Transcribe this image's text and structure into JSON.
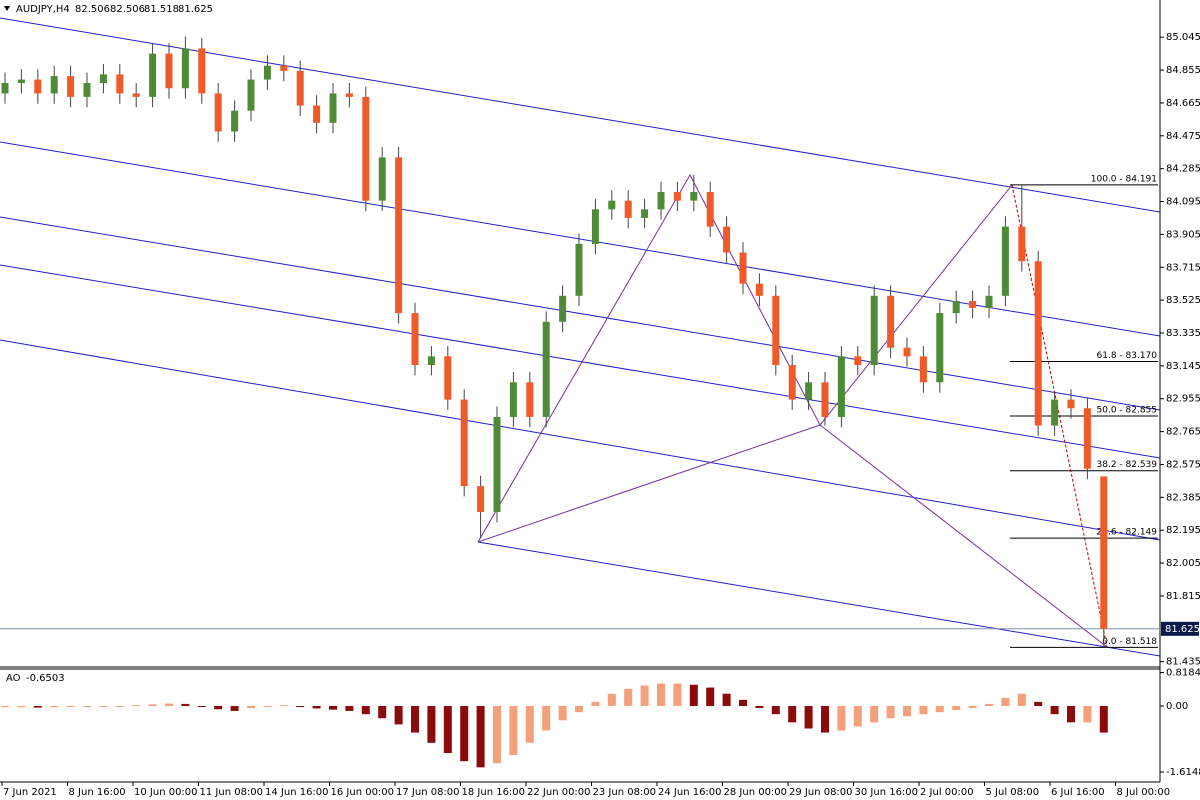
{
  "chart_data": {
    "type": "candlestick",
    "symbol": "AUDJPY,H4",
    "ohlc": [
      82.506,
      82.506,
      81.518,
      81.625
    ],
    "open": [
      84.72,
      84.78,
      84.8,
      84.72,
      84.82,
      84.7,
      84.78,
      84.83,
      84.72,
      84.7,
      84.95,
      84.75,
      84.98,
      84.72,
      84.5,
      84.62,
      84.8,
      84.88,
      84.85,
      84.65,
      84.55,
      84.72,
      84.7,
      84.1,
      84.35,
      83.45,
      83.15,
      83.2,
      82.95,
      82.45,
      82.3,
      82.85,
      83.05,
      82.85,
      83.4,
      83.55,
      83.85,
      84.05,
      84.1,
      84.0,
      84.05,
      84.15,
      84.1,
      84.15,
      83.95,
      83.8,
      83.62,
      83.55,
      83.15,
      82.95,
      83.05,
      82.85,
      83.2,
      83.15,
      83.55,
      83.25,
      83.2,
      83.05,
      83.45,
      83.52,
      83.48,
      83.55,
      83.95,
      83.75,
      82.8,
      82.95,
      82.9,
      82.506
    ],
    "high": [
      84.84,
      84.86,
      84.86,
      84.88,
      84.88,
      84.84,
      84.89,
      84.89,
      84.78,
      85.01,
      85.01,
      85.05,
      85.04,
      84.78,
      84.68,
      84.86,
      84.94,
      84.94,
      84.91,
      84.71,
      84.78,
      84.78,
      84.76,
      84.41,
      84.41,
      83.51,
      83.26,
      83.26,
      83.01,
      82.51,
      82.91,
      83.11,
      83.11,
      83.46,
      83.61,
      83.91,
      84.11,
      84.16,
      84.16,
      84.11,
      84.21,
      84.21,
      84.25,
      84.21,
      84.01,
      83.86,
      83.68,
      83.61,
      83.21,
      83.11,
      83.11,
      83.26,
      83.26,
      83.61,
      83.61,
      83.31,
      83.26,
      83.51,
      83.58,
      83.58,
      83.61,
      84.01,
      84.19,
      83.81,
      82.99,
      83.01,
      82.96,
      82.506
    ],
    "low": [
      84.66,
      84.72,
      84.66,
      84.66,
      84.64,
      84.64,
      84.72,
      84.66,
      84.64,
      84.64,
      84.69,
      84.69,
      84.66,
      84.44,
      84.44,
      84.56,
      84.74,
      84.79,
      84.59,
      84.49,
      84.49,
      84.64,
      84.04,
      84.04,
      83.39,
      83.09,
      83.09,
      82.89,
      82.39,
      82.15,
      82.24,
      82.79,
      82.79,
      82.79,
      83.34,
      83.49,
      83.79,
      83.99,
      83.94,
      83.94,
      83.99,
      84.04,
      84.04,
      83.89,
      83.74,
      83.56,
      83.49,
      83.09,
      82.89,
      82.89,
      82.8,
      82.79,
      83.09,
      83.09,
      83.19,
      83.14,
      82.99,
      82.99,
      83.39,
      83.42,
      83.42,
      83.49,
      83.69,
      82.74,
      82.74,
      82.84,
      82.49,
      81.518
    ],
    "close": [
      84.78,
      84.8,
      84.72,
      84.82,
      84.7,
      84.78,
      84.83,
      84.72,
      84.7,
      84.95,
      84.75,
      84.98,
      84.72,
      84.5,
      84.62,
      84.8,
      84.88,
      84.85,
      84.65,
      84.55,
      84.72,
      84.7,
      84.1,
      84.35,
      83.45,
      83.15,
      83.2,
      82.95,
      82.45,
      82.3,
      82.85,
      83.05,
      82.85,
      83.4,
      83.55,
      83.85,
      84.05,
      84.1,
      84.0,
      84.05,
      84.15,
      84.1,
      84.15,
      83.95,
      83.8,
      83.62,
      83.55,
      83.15,
      82.95,
      83.05,
      82.85,
      83.2,
      83.15,
      83.55,
      83.25,
      83.2,
      83.05,
      83.45,
      83.52,
      83.48,
      83.55,
      83.95,
      83.75,
      82.8,
      82.95,
      82.9,
      82.55,
      81.625
    ],
    "up_color": "#4f8a37",
    "down_color": "#f05a28",
    "ylim": [
      81.41,
      85.26
    ],
    "yticks": [
      85.045,
      84.855,
      84.665,
      84.475,
      84.285,
      84.095,
      83.905,
      83.715,
      83.525,
      83.335,
      83.145,
      82.955,
      82.765,
      82.575,
      82.385,
      82.195,
      82.005,
      81.815,
      81.435
    ],
    "xlabels": [
      "7 Jun 2021",
      "8 Jun 16:00",
      "10 Jun 00:00",
      "11 Jun 08:00",
      "14 Jun 16:00",
      "16 Jun 00:00",
      "17 Jun 08:00",
      "18 Jun 16:00",
      "22 Jun 00:00",
      "23 Jun 08:00",
      "24 Jun 16:00",
      "28 Jun 00:00",
      "29 Jun 08:00",
      "30 Jun 16:00",
      "2 Jul 00:00",
      "5 Jul 08:00",
      "6 Jul 16:00",
      "8 Jul 00:00"
    ],
    "fib_levels": [
      {
        "label": "100.0 - 84.191",
        "price": 84.191
      },
      {
        "label": "61.8 - 83.170",
        "price": 83.17
      },
      {
        "label": "50.0 - 82.855",
        "price": 82.855
      },
      {
        "label": "38.2 - 82.539",
        "price": 82.539
      },
      {
        "label": "23.6 - 82.149",
        "price": 82.149
      },
      {
        "label": "0.0 - 81.518",
        "price": 81.518
      }
    ],
    "indicator": {
      "name": "AO",
      "value": -0.6503,
      "values": [
        -0.03,
        -0.03,
        -0.04,
        -0.03,
        -0.02,
        -0.02,
        -0.01,
        0.0,
        0.02,
        0.04,
        0.06,
        0.05,
        0.0,
        -0.08,
        -0.12,
        -0.05,
        0.0,
        0.02,
        -0.02,
        -0.06,
        -0.09,
        -0.12,
        -0.2,
        -0.3,
        -0.45,
        -0.65,
        -0.9,
        -1.15,
        -1.35,
        -1.5,
        -1.4,
        -1.2,
        -0.9,
        -0.6,
        -0.35,
        -0.15,
        0.1,
        0.3,
        0.42,
        0.5,
        0.55,
        0.55,
        0.52,
        0.45,
        0.3,
        0.15,
        -0.05,
        -0.2,
        -0.4,
        -0.55,
        -0.65,
        -0.6,
        -0.5,
        -0.4,
        -0.3,
        -0.25,
        -0.2,
        -0.15,
        -0.1,
        -0.05,
        0.05,
        0.2,
        0.3,
        0.1,
        -0.2,
        -0.4,
        -0.4,
        -0.6503
      ],
      "up_color": "#f4a07a",
      "down_color": "#8b0a0a",
      "ylim": [
        -1.81,
        0.88
      ],
      "yticks": [
        0.8184,
        {
          "value": 0,
          "label": "0.00"
        },
        -1.6148
      ]
    }
  }
}
